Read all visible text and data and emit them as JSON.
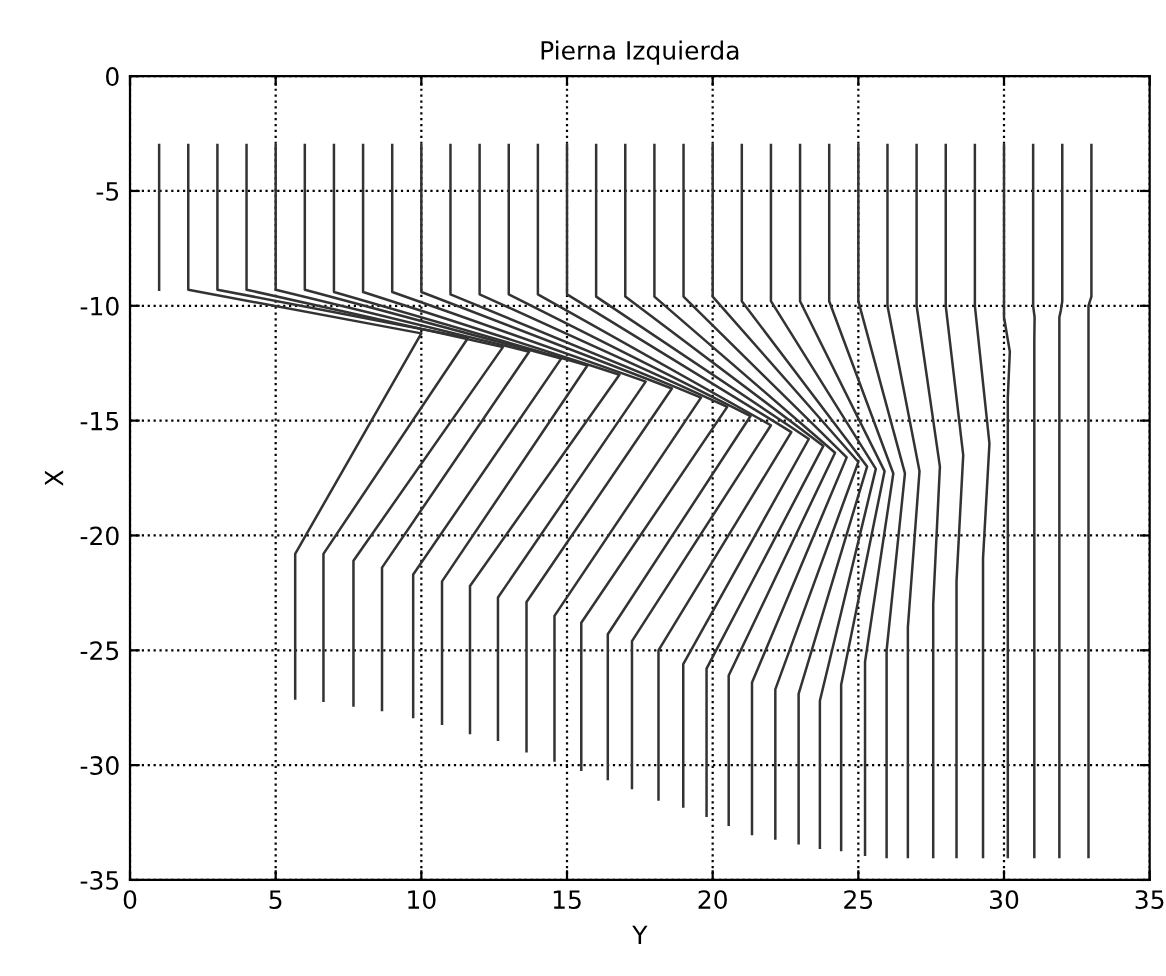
{
  "chart_data": {
    "type": "line",
    "title": "Pierna Izquierda",
    "xlabel": "Y",
    "ylabel": "X",
    "xlim": [
      0,
      35
    ],
    "xticks": [
      0,
      5,
      10,
      15,
      20,
      25,
      30,
      35
    ],
    "ylim": [
      -35,
      0
    ],
    "yticks": [
      -35,
      -30,
      -25,
      -20,
      -15,
      -10,
      -5,
      0
    ],
    "grid": true,
    "marker": "none",
    "line_style": "solid",
    "series": [
      {
        "color": "#333333",
        "x": [
          1,
          1
        ],
        "values": [
          -3,
          -9.3
        ]
      },
      {
        "color": "#333333",
        "x": [
          2,
          2,
          10.0,
          5.67,
          5.67
        ],
        "values": [
          -3,
          -9.3,
          -11.2,
          -20.8,
          -27.1
        ]
      },
      {
        "color": "#333333",
        "x": [
          3,
          3,
          11.6,
          6.64,
          6.64
        ],
        "values": [
          -3,
          -9.3,
          -11.4,
          -20.8,
          -27.2
        ]
      },
      {
        "color": "#333333",
        "x": [
          4,
          4,
          12.8,
          7.67,
          7.67
        ],
        "values": [
          -3,
          -9.3,
          -11.8,
          -21.1,
          -27.4
        ]
      },
      {
        "color": "#333333",
        "x": [
          5,
          5,
          13.7,
          8.65,
          8.65
        ],
        "values": [
          -3,
          -9.3,
          -12.0,
          -21.4,
          -27.6
        ]
      },
      {
        "color": "#333333",
        "x": [
          6,
          6,
          14.8,
          9.72,
          9.72
        ],
        "values": [
          -3,
          -9.3,
          -12.3,
          -21.7,
          -27.9
        ]
      },
      {
        "color": "#333333",
        "x": [
          7,
          7,
          15.7,
          10.71,
          10.71
        ],
        "values": [
          -3,
          -9.4,
          -12.6,
          -22.0,
          -28.2
        ]
      },
      {
        "color": "#333333",
        "x": [
          8,
          8,
          16.8,
          11.67,
          11.67
        ],
        "values": [
          -3,
          -9.4,
          -13.0,
          -22.2,
          -28.6
        ]
      },
      {
        "color": "#333333",
        "x": [
          9,
          9,
          17.7,
          12.63,
          12.63
        ],
        "values": [
          -3,
          -9.4,
          -13.3,
          -22.7,
          -28.9
        ]
      },
      {
        "color": "#333333",
        "x": [
          10,
          10,
          18.6,
          13.61,
          13.61
        ],
        "values": [
          -3,
          -9.4,
          -13.6,
          -22.9,
          -29.4
        ]
      },
      {
        "color": "#333333",
        "x": [
          11,
          11,
          19.6,
          14.57,
          14.57
        ],
        "values": [
          -3,
          -9.5,
          -14.0,
          -23.5,
          -29.8
        ]
      },
      {
        "color": "#333333",
        "x": [
          12,
          12,
          20.5,
          15.49,
          15.49
        ],
        "values": [
          -3,
          -9.5,
          -14.4,
          -23.8,
          -30.2
        ]
      },
      {
        "color": "#333333",
        "x": [
          13,
          13,
          21.3,
          16.4,
          16.4
        ],
        "values": [
          -3,
          -9.5,
          -14.8,
          -24.3,
          -30.6
        ]
      },
      {
        "color": "#333333",
        "x": [
          14,
          14,
          22.0,
          17.23,
          17.23
        ],
        "values": [
          -3,
          -9.5,
          -15.2,
          -24.6,
          -31.0
        ]
      },
      {
        "color": "#333333",
        "x": [
          15,
          15,
          22.7,
          18.14,
          18.14
        ],
        "values": [
          -3,
          -9.5,
          -15.5,
          -25.0,
          -31.5
        ]
      },
      {
        "color": "#333333",
        "x": [
          16,
          16,
          23.3,
          18.99,
          18.99
        ],
        "values": [
          -3,
          -9.6,
          -15.8,
          -25.6,
          -31.8
        ]
      },
      {
        "color": "#333333",
        "x": [
          17,
          17,
          23.8,
          19.79,
          19.79
        ],
        "values": [
          -3,
          -9.6,
          -16.1,
          -25.8,
          -32.2
        ]
      },
      {
        "color": "#333333",
        "x": [
          18,
          18,
          24.2,
          20.55,
          20.55
        ],
        "values": [
          -3,
          -9.6,
          -16.4,
          -26.1,
          -32.6
        ]
      },
      {
        "color": "#333333",
        "x": [
          19,
          19,
          24.6,
          21.35,
          21.35
        ],
        "values": [
          -3,
          -9.6,
          -16.6,
          -26.4,
          -33.0
        ]
      },
      {
        "color": "#333333",
        "x": [
          20,
          20,
          25.0,
          22.15,
          22.15
        ],
        "values": [
          -3,
          -9.6,
          -16.8,
          -26.7,
          -33.2
        ]
      },
      {
        "color": "#333333",
        "x": [
          21,
          21,
          25.3,
          22.95,
          22.95
        ],
        "values": [
          -3,
          -9.8,
          -17.0,
          -26.9,
          -33.4
        ]
      },
      {
        "color": "#333333",
        "x": [
          22,
          22,
          25.6,
          23.68,
          23.68
        ],
        "values": [
          -3,
          -9.8,
          -17.1,
          -27.2,
          -33.6
        ]
      },
      {
        "color": "#333333",
        "x": [
          23,
          23,
          25.9,
          24.41,
          24.41
        ],
        "values": [
          -3,
          -9.8,
          -17.2,
          -26.5,
          -33.7
        ]
      },
      {
        "color": "#333333",
        "x": [
          24,
          24,
          26.2,
          25.23,
          25.23
        ],
        "values": [
          -3,
          -9.8,
          -17.3,
          -25.5,
          -33.9
        ]
      },
      {
        "color": "#333333",
        "x": [
          25,
          25,
          26.6,
          25.97,
          25.97
        ],
        "values": [
          -3,
          -9.8,
          -17.3,
          -25.0,
          -34.0
        ]
      },
      {
        "color": "#333333",
        "x": [
          26,
          26,
          27.1,
          26.7,
          26.7
        ],
        "values": [
          -3,
          -10.0,
          -17.2,
          -24.0,
          -34.0
        ]
      },
      {
        "color": "#333333",
        "x": [
          27,
          27,
          27.8,
          27.57,
          27.57
        ],
        "values": [
          -3,
          -10.0,
          -17.0,
          -23.0,
          -34.0
        ]
      },
      {
        "color": "#333333",
        "x": [
          28,
          28,
          28.6,
          28.37,
          28.37
        ],
        "values": [
          -3,
          -10.0,
          -16.5,
          -22.0,
          -34.0
        ]
      },
      {
        "color": "#333333",
        "x": [
          29,
          29,
          29.5,
          29.28,
          29.28
        ],
        "values": [
          -3,
          -10.0,
          -16.0,
          -21.0,
          -34.0
        ]
      },
      {
        "color": "#333333",
        "x": [
          30,
          30,
          30.2,
          30.13,
          30.13
        ],
        "values": [
          -3,
          -10.5,
          -12.0,
          -14.0,
          -34.0
        ]
      },
      {
        "color": "#333333",
        "x": [
          31,
          31,
          31.05,
          31.04,
          31.04
        ],
        "values": [
          -3,
          -10.0,
          -10.5,
          -11.5,
          -34.0
        ]
      },
      {
        "color": "#333333",
        "x": [
          32,
          32,
          31.95,
          31.9,
          31.9
        ],
        "values": [
          -3,
          -9.8,
          -10.2,
          -10.5,
          -34.0
        ]
      },
      {
        "color": "#333333",
        "x": [
          33,
          33,
          32.95,
          32.9,
          32.9
        ],
        "values": [
          -3,
          -9.6,
          -9.8,
          -10.0,
          -34.0
        ]
      }
    ]
  }
}
